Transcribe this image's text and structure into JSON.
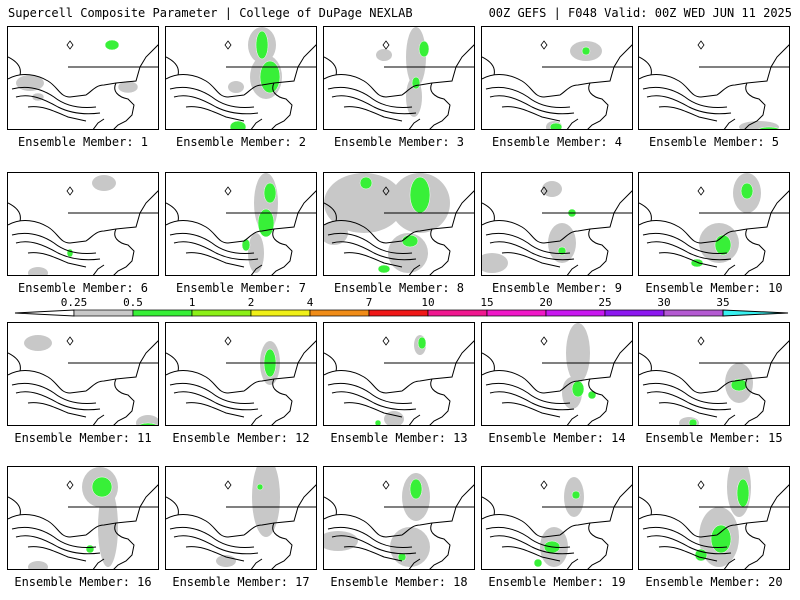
{
  "header": {
    "title_left": "Supercell Composite Parameter | College of DuPage NEXLAB",
    "title_right": "00Z GEFS | F048 Valid: 00Z WED JUN 11 2025"
  },
  "panels": [
    {
      "label": "Ensemble Member: 1"
    },
    {
      "label": "Ensemble Member: 2"
    },
    {
      "label": "Ensemble Member: 3"
    },
    {
      "label": "Ensemble Member: 4"
    },
    {
      "label": "Ensemble Member: 5"
    },
    {
      "label": "Ensemble Member: 6"
    },
    {
      "label": "Ensemble Member: 7"
    },
    {
      "label": "Ensemble Member: 8"
    },
    {
      "label": "Ensemble Member: 9"
    },
    {
      "label": "Ensemble Member: 10"
    },
    {
      "label": "Ensemble Member: 11"
    },
    {
      "label": "Ensemble Member: 12"
    },
    {
      "label": "Ensemble Member: 13"
    },
    {
      "label": "Ensemble Member: 14"
    },
    {
      "label": "Ensemble Member: 15"
    },
    {
      "label": "Ensemble Member: 16"
    },
    {
      "label": "Ensemble Member: 17"
    },
    {
      "label": "Ensemble Member: 18"
    },
    {
      "label": "Ensemble Member: 19"
    },
    {
      "label": "Ensemble Member: 20"
    }
  ],
  "legend": {
    "ticks": [
      "0.25",
      "0.5",
      "1",
      "2",
      "4",
      "7",
      "10",
      "15",
      "20",
      "25",
      "30",
      "35"
    ],
    "colors": [
      "#c8c8c8",
      "#38f038",
      "#8cf018",
      "#f0f018",
      "#f08c18",
      "#f01818",
      "#f01890",
      "#f018c8",
      "#c818f0",
      "#8c18f0",
      "#b45ad2",
      "#38f0f0"
    ]
  },
  "colors": {
    "fill_light": "#c8c8c8",
    "fill_green": "#38f038",
    "fill_yellowgreen": "#8cf018"
  }
}
